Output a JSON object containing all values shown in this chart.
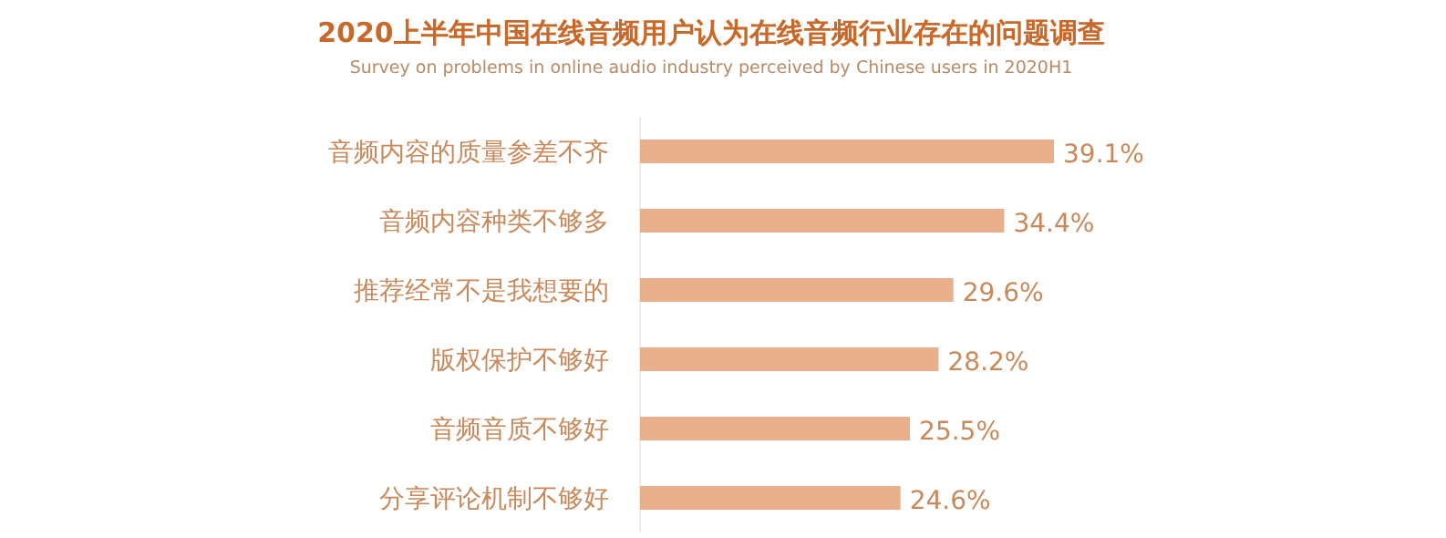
{
  "chart_data": {
    "type": "bar",
    "orientation": "horizontal",
    "title": "2020上半年中国在线音频用户认为在线音频行业存在的问题调查",
    "subtitle": "Survey on problems in online audio industry perceived by Chinese users in 2020H1",
    "categories": [
      "音频内容的质量参差不齐",
      "音频内容种类不够多",
      "推荐经常不是我想要的",
      "版权保护不够好",
      "音频音质不够好",
      "分享评论机制不够好"
    ],
    "values": [
      39.1,
      34.4,
      29.6,
      28.2,
      25.5,
      24.6
    ],
    "value_labels": [
      "39.1%",
      "34.4%",
      "29.6%",
      "28.2%",
      "25.5%",
      "24.6%"
    ],
    "color": "#e8b08a"
  }
}
